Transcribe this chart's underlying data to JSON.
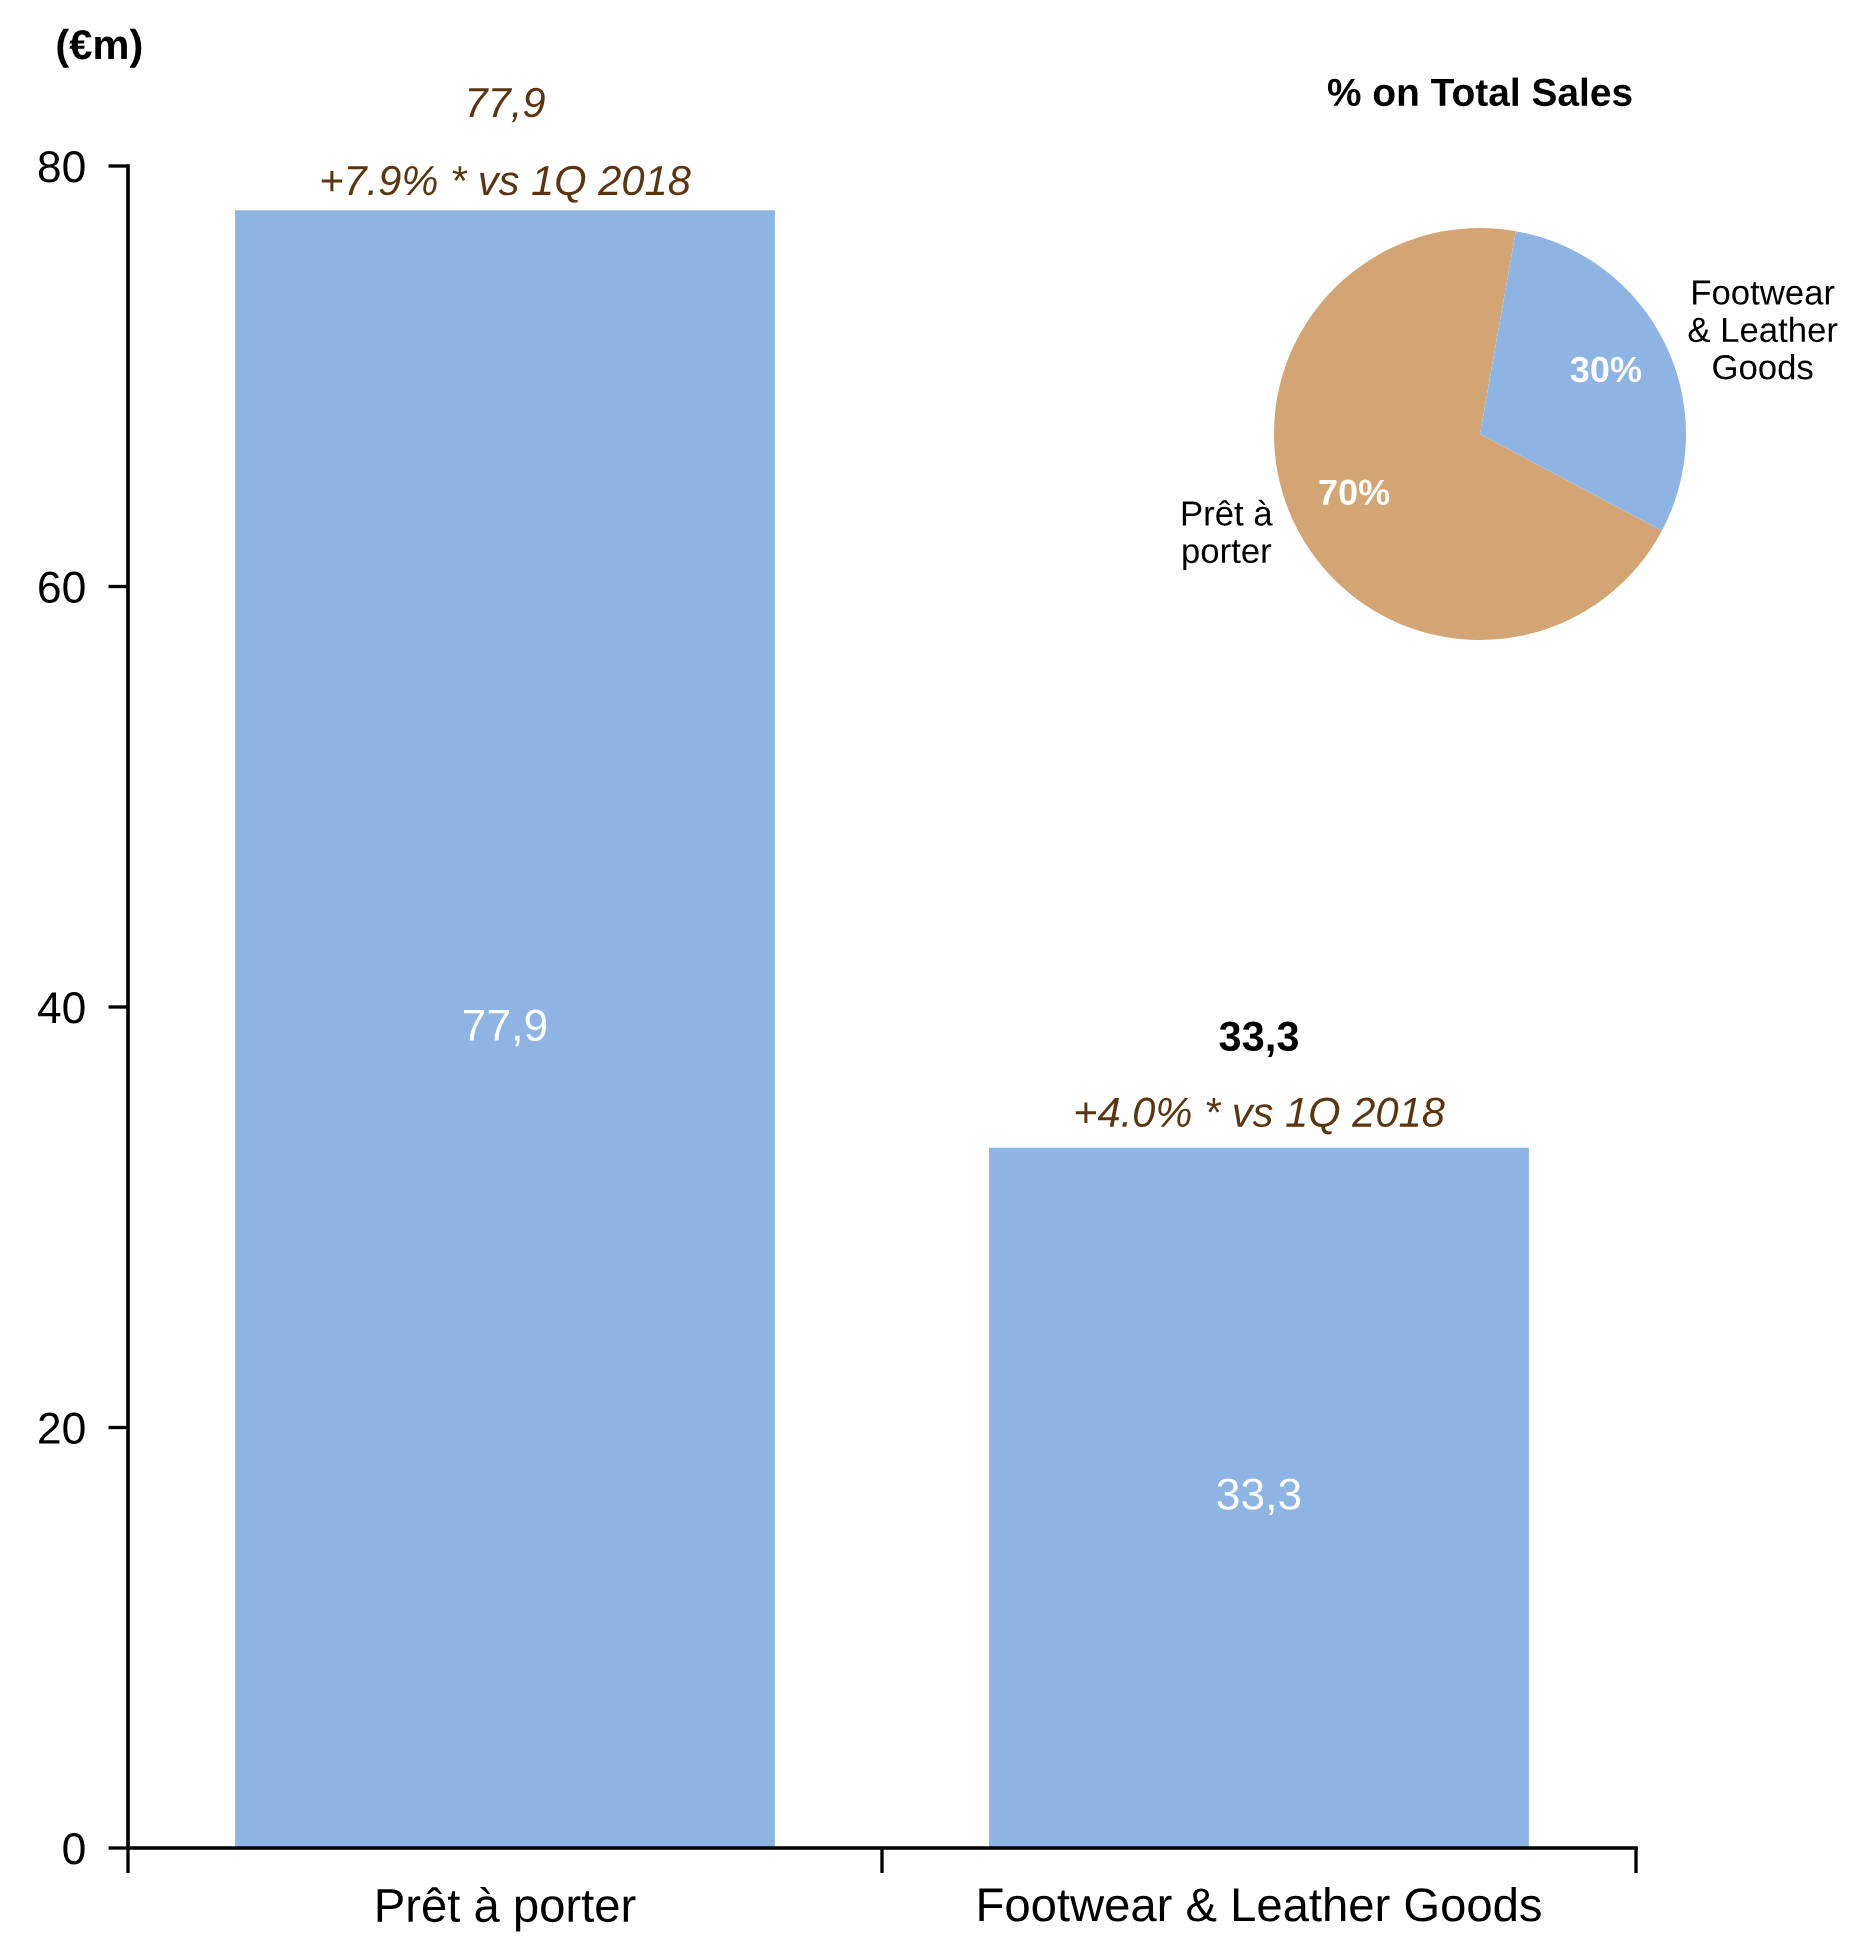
{
  "chart_data": [
    {
      "type": "bar",
      "ylabel": "(€m)",
      "categories": [
        "Prêt à porter",
        "Footwear & Leather Goods"
      ],
      "values": [
        77.9,
        33.3
      ],
      "color": "#8eb4e3",
      "ylim": [
        0,
        80
      ],
      "yticks": [
        0,
        20,
        40,
        60,
        80
      ],
      "value_labels": [
        "77,9",
        "33,3"
      ],
      "annotations": [
        {
          "text": "77,9",
          "x": "Prêt à porter",
          "y": 77.9
        },
        {
          "text": "+7.9% * vs 1Q 2018",
          "x": "Prêt à porter",
          "y": 77.9
        },
        {
          "text": "33,3",
          "x": "Footwear & Leather Goods",
          "y": 33.3
        },
        {
          "text": "+4.0% * vs 1Q 2018",
          "x": "Footwear & Leather Goods",
          "y": 33.3
        }
      ]
    },
    {
      "type": "pie",
      "title": "% on Total Sales",
      "categories": [
        "Prêt à porter",
        "Footwear & Leather Goods"
      ],
      "values": [
        70,
        30
      ],
      "colors": [
        "#d3a574",
        "#8eb4e3"
      ],
      "value_labels": [
        "70%",
        "30%"
      ]
    }
  ]
}
